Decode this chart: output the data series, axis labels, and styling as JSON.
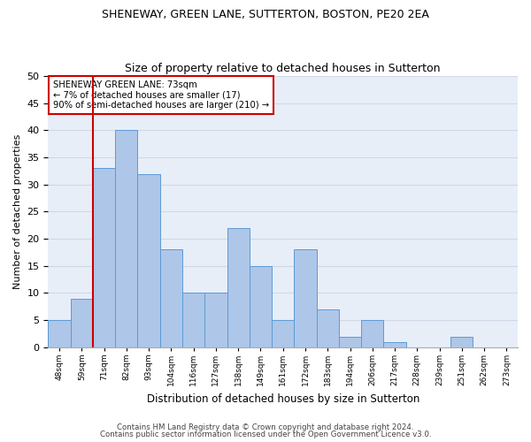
{
  "title1": "SHENEWAY, GREEN LANE, SUTTERTON, BOSTON, PE20 2EA",
  "title2": "Size of property relative to detached houses in Sutterton",
  "xlabel": "Distribution of detached houses by size in Sutterton",
  "ylabel": "Number of detached properties",
  "footnote1": "Contains HM Land Registry data © Crown copyright and database right 2024.",
  "footnote2": "Contains public sector information licensed under the Open Government Licence v3.0.",
  "annotation_line1": "SHENEWAY GREEN LANE: 73sqm",
  "annotation_line2": "← 7% of detached houses are smaller (17)",
  "annotation_line3": "90% of semi-detached houses are larger (210) →",
  "bar_values": [
    5,
    9,
    33,
    40,
    32,
    18,
    10,
    10,
    22,
    15,
    5,
    18,
    7,
    2,
    5,
    1,
    0,
    0,
    2
  ],
  "bin_labels": [
    "48sqm",
    "59sqm",
    "71sqm",
    "82sqm",
    "93sqm",
    "104sqm",
    "116sqm",
    "127sqm",
    "138sqm",
    "149sqm",
    "161sqm",
    "172sqm",
    "183sqm",
    "194sqm",
    "206sqm",
    "217sqm",
    "228sqm",
    "239sqm",
    "251sqm",
    "262sqm",
    "273sqm"
  ],
  "bar_color": "#aec6e8",
  "bar_edge_color": "#5b9bd5",
  "vline_color": "#cc0000",
  "annotation_box_edge": "#cc0000",
  "ylim": [
    0,
    50
  ],
  "yticks": [
    0,
    5,
    10,
    15,
    20,
    25,
    30,
    35,
    40,
    45,
    50
  ],
  "grid_color": "#d0d8e8",
  "bg_color": "#e8eef8"
}
